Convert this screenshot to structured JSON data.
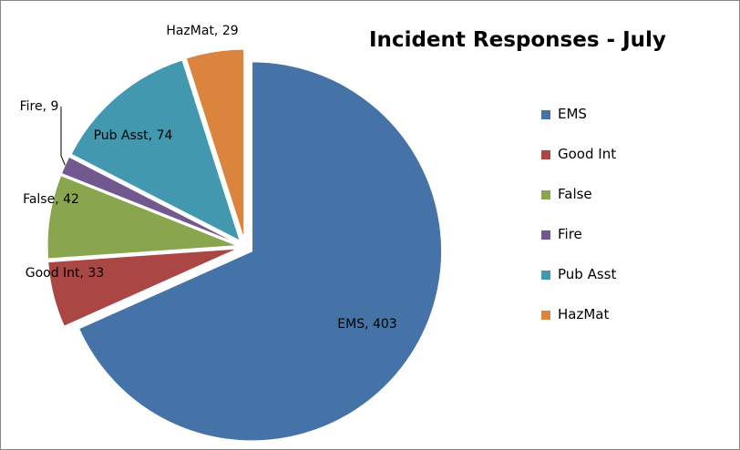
{
  "chart_data": {
    "type": "pie",
    "title": "Incident Responses - July",
    "categories": [
      "EMS",
      "Good Int",
      "False",
      "Fire",
      "Pub Asst",
      "HazMat"
    ],
    "values": [
      403,
      33,
      42,
      9,
      74,
      29
    ],
    "data_labels": [
      "EMS, 403",
      "Good Int, 33",
      "False, 42",
      "Fire, 9",
      "Pub Asst, 74",
      "HazMat, 29"
    ],
    "colors": [
      "#4572a7",
      "#aa4643",
      "#89a54e",
      "#71588f",
      "#4198af",
      "#db843d"
    ],
    "exploded": true,
    "legend_position": "right"
  }
}
